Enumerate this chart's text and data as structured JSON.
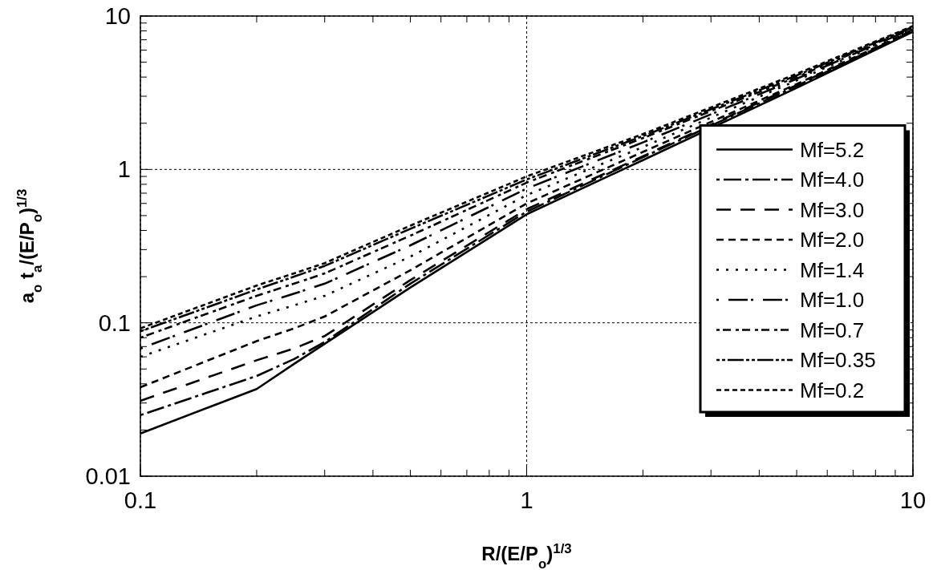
{
  "chart_data": {
    "type": "line",
    "xlabel": "R/(E/P$_{o}$)$^{1/3}$",
    "ylabel": "a$_{o}$ t$_{a}$/(E/P$_{o}$)$^{1/3}$",
    "log": "xy",
    "grid": true,
    "legend": "bottom right",
    "xlim": [
      0.1,
      10
    ],
    "ylim": [
      0.01,
      10
    ],
    "xticks": [
      0.1,
      1,
      10
    ],
    "yticks": [
      0.01,
      0.1,
      1,
      10
    ],
    "x": [
      0.1,
      0.2,
      0.25,
      0.3,
      0.5,
      1,
      2,
      5,
      10
    ],
    "series": [
      {
        "name": "Mf=5.2",
        "color": "#000000",
        "line_style": "solid",
        "values": [
          0.019,
          0.037,
          0.054,
          0.073,
          0.17,
          0.51,
          1.15,
          3.4,
          7.9
        ]
      },
      {
        "name": "Mf=4.0",
        "color": "#000000",
        "line_style": "dashed",
        "values": [
          0.025,
          0.045,
          0.058,
          0.075,
          0.18,
          0.53,
          1.2,
          3.5,
          8.0
        ]
      },
      {
        "name": "Mf=3.0",
        "color": "#000000",
        "line_style": "dashed",
        "values": [
          0.031,
          0.057,
          0.068,
          0.082,
          0.19,
          0.55,
          1.22,
          3.55,
          8.0
        ]
      },
      {
        "name": "Mf=2.0",
        "color": "#000000",
        "line_style": "dashed",
        "values": [
          0.038,
          0.076,
          0.092,
          0.11,
          0.22,
          0.6,
          1.3,
          3.6,
          8.1
        ]
      },
      {
        "name": "Mf=1.4",
        "color": "#000000",
        "line_style": "dotted",
        "values": [
          0.06,
          0.11,
          0.13,
          0.15,
          0.27,
          0.68,
          1.4,
          3.8,
          8.2
        ]
      },
      {
        "name": "Mf=1.0",
        "color": "#000000",
        "line_style": "dashed",
        "values": [
          0.068,
          0.13,
          0.155,
          0.18,
          0.32,
          0.75,
          1.5,
          3.9,
          8.3
        ]
      },
      {
        "name": "Mf=0.7",
        "color": "#000000",
        "line_style": "dashed",
        "values": [
          0.08,
          0.15,
          0.18,
          0.21,
          0.37,
          0.82,
          1.6,
          4.0,
          8.4
        ]
      },
      {
        "name": "Mf=0.35",
        "color": "#000000",
        "line_style": "dashed",
        "values": [
          0.088,
          0.165,
          0.2,
          0.235,
          0.41,
          0.86,
          1.65,
          4.1,
          8.5
        ]
      },
      {
        "name": "Mf=0.2",
        "color": "#000000",
        "line_style": "dashed",
        "values": [
          0.092,
          0.175,
          0.21,
          0.245,
          0.43,
          0.9,
          1.7,
          4.2,
          8.6
        ]
      }
    ]
  }
}
